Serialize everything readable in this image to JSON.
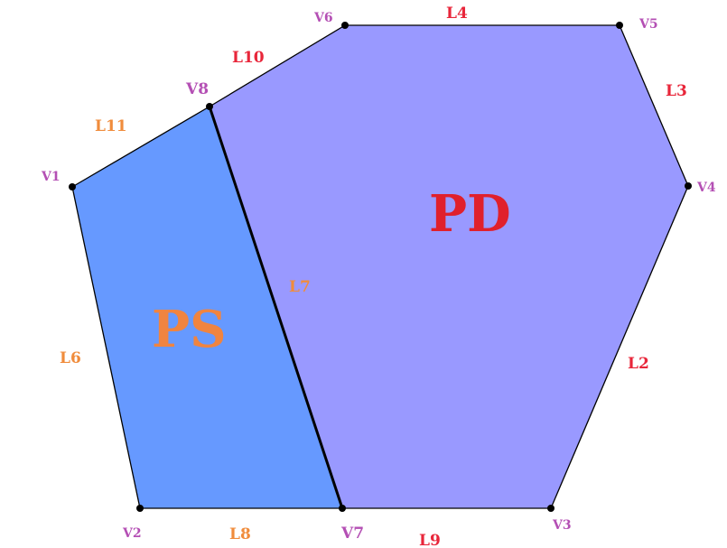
{
  "colors": {
    "ps_fill": "#6699ff",
    "pd_fill": "#9999ff",
    "vertex_label": "#b44fb4",
    "ps_edge_label": "#f08c3c",
    "pd_edge_label": "#e8263a",
    "ps_region_label": "#f08440",
    "pd_region_label": "#e0202c",
    "outline": "#000000"
  },
  "vertices": [
    {
      "id": "V1",
      "label": "V1"
    },
    {
      "id": "V2",
      "label": "V2"
    },
    {
      "id": "V3",
      "label": "V3"
    },
    {
      "id": "V4",
      "label": "V4"
    },
    {
      "id": "V5",
      "label": "V5"
    },
    {
      "id": "V6",
      "label": "V6"
    },
    {
      "id": "V7",
      "label": "V7"
    },
    {
      "id": "V8",
      "label": "V8"
    }
  ],
  "edges": [
    {
      "id": "L2",
      "label": "L2",
      "region": "PD"
    },
    {
      "id": "L3",
      "label": "L3",
      "region": "PD"
    },
    {
      "id": "L4",
      "label": "L4",
      "region": "PD"
    },
    {
      "id": "L6",
      "label": "L6",
      "region": "PS"
    },
    {
      "id": "L7",
      "label": "L7",
      "region": "PS"
    },
    {
      "id": "L8",
      "label": "L8",
      "region": "PS"
    },
    {
      "id": "L9",
      "label": "L9",
      "region": "PD"
    },
    {
      "id": "L10",
      "label": "L10",
      "region": "PD"
    },
    {
      "id": "L11",
      "label": "L11",
      "region": "PS"
    }
  ],
  "regions": [
    {
      "id": "PS",
      "label": "PS",
      "vertices": [
        "V1",
        "V2",
        "V7",
        "V8"
      ]
    },
    {
      "id": "PD",
      "label": "PD",
      "vertices": [
        "V8",
        "V7",
        "V3",
        "V4",
        "V5",
        "V6"
      ]
    }
  ]
}
